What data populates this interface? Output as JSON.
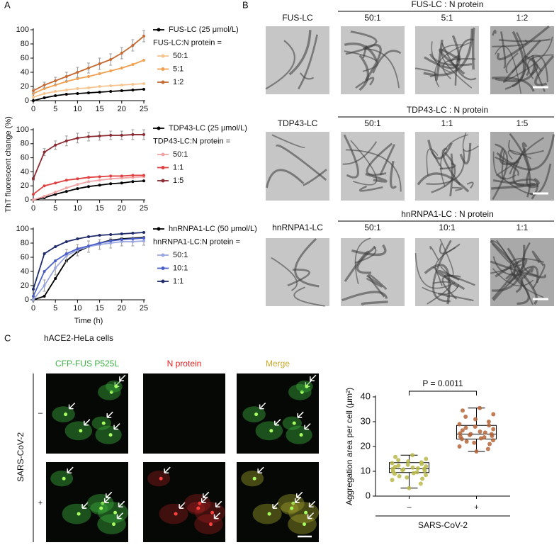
{
  "labels": {
    "a": "A",
    "b": "B",
    "c": "C"
  },
  "panel_a": {
    "ylabel": "ThT fluorescent change (%)"
  },
  "chart_data": [
    {
      "type": "line",
      "x": [
        0,
        2.5,
        5,
        7.5,
        10,
        12.5,
        15,
        17.5,
        20,
        22.5,
        25
      ],
      "xlim": [
        0,
        25
      ],
      "xticks": [
        0,
        5,
        10,
        15,
        20,
        25
      ],
      "ylim": [
        0,
        100
      ],
      "yticks": [
        0,
        20,
        40,
        60,
        80,
        100
      ],
      "legend_title": "FUS-LC:N protein =",
      "series": [
        {
          "name": "FUS-LC (25 μmol/L)",
          "color": "#000000",
          "values": [
            0,
            4,
            7,
            9,
            10,
            11,
            12,
            13,
            14,
            15,
            16
          ]
        },
        {
          "name": "50:1",
          "color": "#f7c48e",
          "values": [
            5,
            10,
            13,
            15,
            17,
            18,
            20,
            21,
            22,
            23,
            24
          ]
        },
        {
          "name": "5:1",
          "color": "#f0a050",
          "values": [
            10,
            17,
            22,
            27,
            31,
            34,
            38,
            42,
            46,
            51,
            57
          ]
        },
        {
          "name": "1:2",
          "color": "#c46a32",
          "values": [
            14,
            22,
            28,
            34,
            40,
            46,
            52,
            58,
            67,
            78,
            91
          ],
          "errors": [
            3,
            4,
            5,
            6,
            7,
            7,
            8,
            8,
            8,
            8,
            8
          ]
        }
      ]
    },
    {
      "type": "line",
      "x": [
        0,
        2.5,
        5,
        7.5,
        10,
        12.5,
        15,
        17.5,
        20,
        22.5,
        25
      ],
      "xlim": [
        0,
        25
      ],
      "xticks": [
        0,
        5,
        10,
        15,
        20,
        25
      ],
      "ylim": [
        0,
        100
      ],
      "yticks": [
        0,
        20,
        40,
        60,
        80,
        100
      ],
      "legend_title": "TDP43-LC:N protein =",
      "series": [
        {
          "name": "TDP43-LC (25 μmol/L)",
          "color": "#000000",
          "values": [
            0,
            3,
            8,
            12,
            16,
            19,
            21,
            23,
            24,
            26,
            27
          ]
        },
        {
          "name": "50:1",
          "color": "#f2a4a4",
          "values": [
            0,
            5,
            11,
            17,
            22,
            26,
            28,
            30,
            31,
            32,
            33
          ]
        },
        {
          "name": "1:1",
          "color": "#e04040",
          "values": [
            8,
            20,
            24,
            28,
            30,
            32,
            33,
            34,
            34,
            35,
            35
          ]
        },
        {
          "name": "1:5",
          "color": "#8b2a30",
          "values": [
            30,
            68,
            78,
            84,
            88,
            90,
            91,
            92,
            92,
            93,
            93
          ],
          "errors": [
            2,
            5,
            6,
            7,
            7,
            6,
            6,
            6,
            6,
            7,
            7
          ]
        }
      ]
    },
    {
      "type": "line",
      "x": [
        0,
        2.5,
        5,
        7.5,
        10,
        12.5,
        15,
        17.5,
        20,
        22.5,
        25
      ],
      "xlim": [
        0,
        25
      ],
      "xticks": [
        0,
        5,
        10,
        15,
        20,
        25
      ],
      "ylim": [
        0,
        100
      ],
      "yticks": [
        0,
        20,
        40,
        60,
        80,
        100
      ],
      "xlabel": "Time (h)",
      "legend_title": "hnRNPA1-LC:N protein =",
      "series": [
        {
          "name": "hnRNPA1-LC (50 μmol/L)",
          "color": "#000000",
          "values": [
            0,
            5,
            30,
            55,
            68,
            75,
            80,
            84,
            86,
            87,
            88
          ]
        },
        {
          "name": "50:1",
          "color": "#9aa6e0",
          "values": [
            0,
            20,
            45,
            62,
            70,
            75,
            78,
            80,
            82,
            82,
            83
          ],
          "errors": [
            2,
            8,
            10,
            9,
            8,
            8,
            7,
            7,
            6,
            6,
            6
          ]
        },
        {
          "name": "10:1",
          "color": "#4a5fc8",
          "values": [
            5,
            40,
            55,
            65,
            72,
            76,
            80,
            83,
            85,
            86,
            87
          ]
        },
        {
          "name": "1:1",
          "color": "#1f2a6b",
          "values": [
            15,
            65,
            75,
            82,
            86,
            89,
            91,
            92,
            93,
            94,
            95
          ]
        }
      ]
    },
    {
      "type": "box",
      "categories": [
        "–",
        "+"
      ],
      "ylim": [
        0,
        40
      ],
      "yticks": [
        0,
        10,
        20,
        30,
        40
      ],
      "ylabel": "Aggregation area per cell (μm²)",
      "xlabel": "SARS-CoV-2",
      "annotation": "P = 0.0011",
      "boxes": [
        {
          "color": "#b8b84a",
          "min": 3.2,
          "q1": 9.5,
          "median": 11,
          "q3": 13.5,
          "max": 16.5,
          "points": [
            3.2,
            5,
            6.5,
            7,
            7.5,
            8,
            8.5,
            9,
            9.3,
            9.6,
            10,
            10.2,
            10.5,
            10.8,
            11,
            11,
            11.2,
            11.5,
            11.8,
            12,
            12.3,
            12.6,
            13,
            13.3,
            13.6,
            14,
            14.5,
            15,
            15.8,
            16.5
          ]
        },
        {
          "color": "#b5653a",
          "min": 18,
          "q1": 23,
          "median": 25,
          "q3": 28.5,
          "max": 35.5,
          "points": [
            18,
            19,
            20,
            21,
            21.5,
            22,
            22.5,
            23,
            23.3,
            23.7,
            24,
            24.3,
            24.6,
            25,
            25,
            25.3,
            25.6,
            26,
            26.5,
            27,
            27.5,
            28,
            28.5,
            29,
            30,
            31,
            32,
            33,
            34.5,
            35.5
          ]
        }
      ]
    }
  ],
  "panel_b": {
    "rows": [
      {
        "control": "FUS-LC",
        "header": "FUS-LC : N protein",
        "ratios": [
          "50:1",
          "5:1",
          "1:2"
        ]
      },
      {
        "control": "TDP43-LC",
        "header": "TDP43-LC : N protein",
        "ratios": [
          "50:1",
          "1:1",
          "1:5"
        ]
      },
      {
        "control": "hnRNPA1-LC",
        "header": "hnRNPA1-LC : N protein",
        "ratios": [
          "50:1",
          "10:1",
          "1:1"
        ]
      }
    ]
  },
  "panel_c": {
    "title": "hACE2-HeLa cells",
    "channels": [
      "CFP-FUS P525L",
      "N protein",
      "Merge"
    ],
    "channel_colors": [
      "#3cb043",
      "#e02020",
      "#c8a82a"
    ],
    "conditions": [
      "–",
      "+"
    ],
    "condition_label": "SARS-CoV-2"
  }
}
